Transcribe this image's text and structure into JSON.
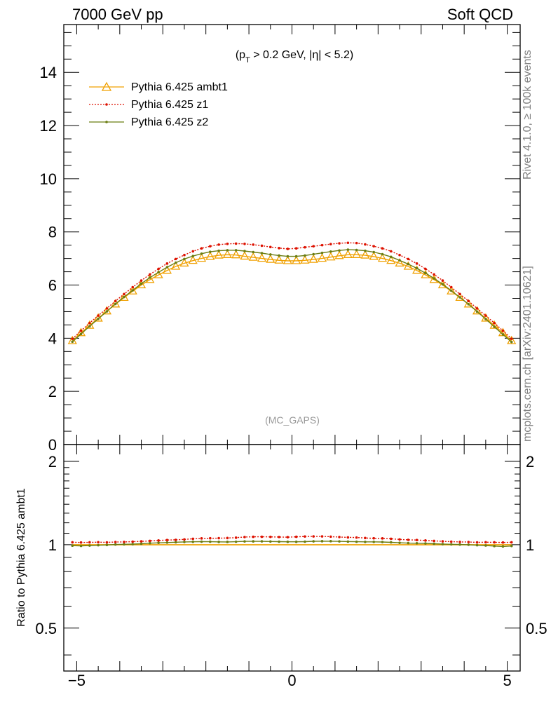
{
  "header": {
    "left": "7000 GeV pp",
    "right": "Soft QCD"
  },
  "side_labels": {
    "rivet": "Rivet 4.1.0, ≥ 100k events",
    "mcplots": "mcplots.cern.ch [arXiv:2401.10621]"
  },
  "chart_data": {
    "type": "line",
    "title": "(pT > 0.2 GeV, |η| < 5.2)",
    "title_parts": {
      "pre": "(p",
      "sub": "T",
      "post": " > 0.2 GeV, |η| < 5.2)"
    },
    "watermark": "(MC_GAPS)",
    "xlim": [
      -5.3,
      5.3
    ],
    "ylim": [
      0,
      15.8
    ],
    "ratio_ylim": [
      0.35,
      2.3
    ],
    "ratio_ylabel": "Ratio to Pythia 6.425 ambt1",
    "x_ticks": [
      -5,
      0,
      5
    ],
    "x_tick_labels": [
      "−5",
      "0",
      "5"
    ],
    "y_ticks": [
      0,
      2,
      4,
      6,
      8,
      10,
      12,
      14
    ],
    "y_tick_labels": [
      "0",
      "2",
      "4",
      "6",
      "8",
      "10",
      "12",
      "14"
    ],
    "ratio_ticks": [
      0.5,
      1,
      2
    ],
    "ratio_tick_labels": [
      "0.5",
      "1",
      "2"
    ],
    "x": [
      -5.1,
      -4.9,
      -4.7,
      -4.5,
      -4.3,
      -4.1,
      -3.9,
      -3.7,
      -3.5,
      -3.3,
      -3.1,
      -2.9,
      -2.7,
      -2.5,
      -2.3,
      -2.1,
      -1.9,
      -1.7,
      -1.5,
      -1.3,
      -1.1,
      -0.9,
      -0.7,
      -0.5,
      -0.3,
      -0.1,
      0.1,
      0.3,
      0.5,
      0.7,
      0.9,
      1.1,
      1.3,
      1.5,
      1.7,
      1.9,
      2.1,
      2.3,
      2.5,
      2.7,
      2.9,
      3.1,
      3.3,
      3.5,
      3.7,
      3.9,
      4.1,
      4.3,
      4.5,
      4.7,
      4.9,
      5.1
    ],
    "series": [
      {
        "name": "Pythia 6.425 ambt1",
        "color": "#f0a000",
        "style": "solid",
        "marker": "triangle",
        "values": [
          3.9,
          4.2,
          4.48,
          4.75,
          5.02,
          5.28,
          5.53,
          5.77,
          6.0,
          6.2,
          6.38,
          6.55,
          6.7,
          6.82,
          6.92,
          7.0,
          7.07,
          7.12,
          7.14,
          7.13,
          7.08,
          7.04,
          7.0,
          6.96,
          6.93,
          6.91,
          6.91,
          6.93,
          6.96,
          7.0,
          7.05,
          7.1,
          7.14,
          7.14,
          7.12,
          7.07,
          7.0,
          6.92,
          6.82,
          6.7,
          6.55,
          6.38,
          6.2,
          6.0,
          5.77,
          5.53,
          5.28,
          5.02,
          4.75,
          4.48,
          4.2,
          3.9
        ]
      },
      {
        "name": "Pythia 6.425 z1",
        "color": "#dd1100",
        "style": "dotted",
        "marker": "dot",
        "values": [
          3.98,
          4.28,
          4.57,
          4.85,
          5.12,
          5.4,
          5.66,
          5.92,
          6.17,
          6.4,
          6.61,
          6.81,
          6.98,
          7.13,
          7.27,
          7.38,
          7.46,
          7.52,
          7.55,
          7.56,
          7.55,
          7.52,
          7.48,
          7.43,
          7.39,
          7.36,
          7.38,
          7.42,
          7.46,
          7.5,
          7.54,
          7.57,
          7.59,
          7.58,
          7.53,
          7.46,
          7.38,
          7.27,
          7.13,
          6.98,
          6.81,
          6.61,
          6.4,
          6.17,
          5.92,
          5.66,
          5.4,
          5.12,
          4.85,
          4.57,
          4.28,
          3.98
        ]
      },
      {
        "name": "Pythia 6.425 z2",
        "color": "#6b7d12",
        "style": "solid",
        "marker": "dot",
        "values": [
          3.87,
          4.16,
          4.45,
          4.73,
          5.01,
          5.29,
          5.55,
          5.8,
          6.05,
          6.28,
          6.48,
          6.67,
          6.84,
          6.98,
          7.09,
          7.18,
          7.25,
          7.29,
          7.31,
          7.31,
          7.28,
          7.24,
          7.2,
          7.15,
          7.11,
          7.08,
          7.08,
          7.11,
          7.16,
          7.21,
          7.26,
          7.3,
          7.33,
          7.32,
          7.29,
          7.24,
          7.16,
          7.06,
          6.93,
          6.79,
          6.63,
          6.45,
          6.25,
          6.03,
          5.79,
          5.54,
          5.28,
          5.0,
          4.72,
          4.43,
          4.14,
          3.86
        ]
      }
    ]
  }
}
